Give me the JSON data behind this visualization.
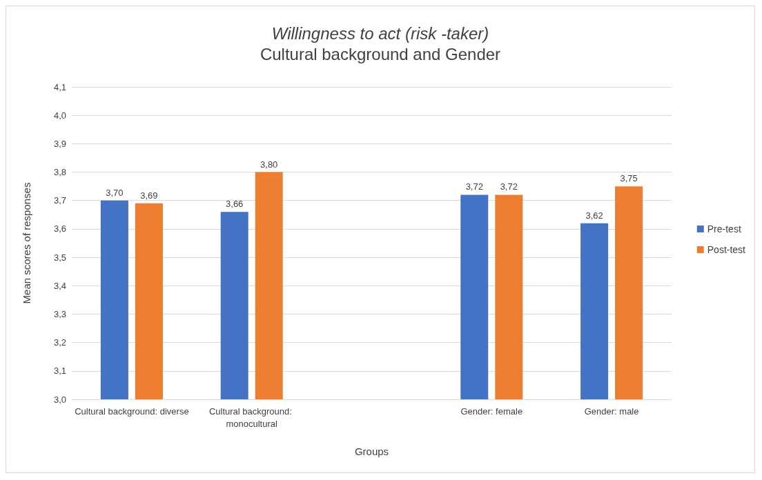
{
  "chart_data": {
    "type": "bar",
    "title": "Willingness to act (risk -taker)",
    "subtitle": "Cultural background and Gender",
    "xlabel": "Groups",
    "ylabel": "Mean scores of responses",
    "categories": [
      "Cultural background: diverse",
      "Cultural background: monocultural",
      null,
      "Gender: female",
      "Gender: male"
    ],
    "series": [
      {
        "name": "Pre-test",
        "color": "#4472c4",
        "values": [
          3.7,
          3.66,
          null,
          3.72,
          3.62
        ],
        "value_labels": [
          "3,70",
          "3,66",
          null,
          "3,72",
          "3,62"
        ]
      },
      {
        "name": "Post-test",
        "color": "#ed7d31",
        "values": [
          3.69,
          3.8,
          null,
          3.72,
          3.75
        ],
        "value_labels": [
          "3,69",
          "3,80",
          null,
          "3,72",
          "3,75"
        ]
      }
    ],
    "ylim": [
      3.0,
      4.1
    ],
    "yticks": [
      {
        "value": 3.0,
        "label": "3,0"
      },
      {
        "value": 3.1,
        "label": "3,1"
      },
      {
        "value": 3.2,
        "label": "3,2"
      },
      {
        "value": 3.3,
        "label": "3,3"
      },
      {
        "value": 3.4,
        "label": "3,4"
      },
      {
        "value": 3.5,
        "label": "3,5"
      },
      {
        "value": 3.6,
        "label": "3,6"
      },
      {
        "value": 3.7,
        "label": "3,7"
      },
      {
        "value": 3.8,
        "label": "3,8"
      },
      {
        "value": 3.9,
        "label": "3,9"
      },
      {
        "value": 4.0,
        "label": "4,0"
      },
      {
        "value": 4.1,
        "label": "4,1"
      }
    ],
    "grid": "y",
    "legend": "right"
  }
}
